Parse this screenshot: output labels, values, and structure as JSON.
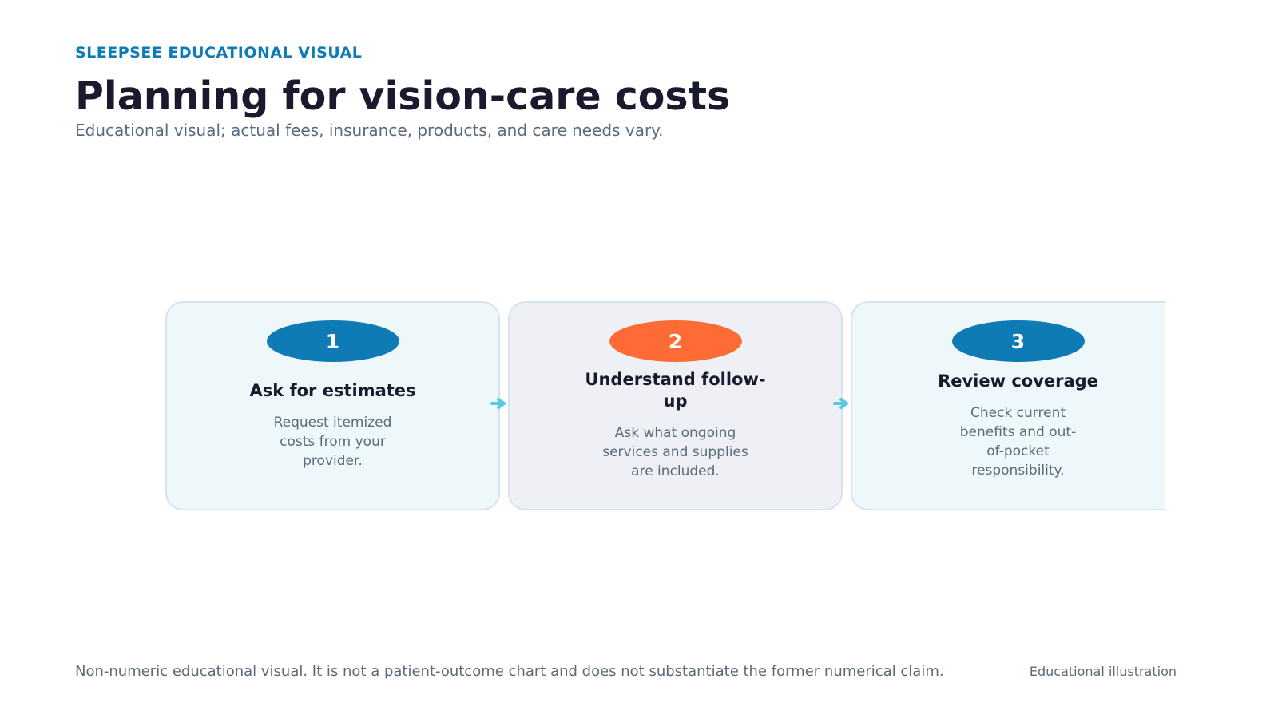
{
  "header": {
    "eyebrow": "SLEEPSEE EDUCATIONAL VISUAL",
    "title": "Planning for vision-care costs",
    "subtitle": "Educational visual; actual fees, insurance, products, and care needs vary."
  },
  "steps": [
    {
      "number": "1",
      "title": "Ask for estimates",
      "body": "Request itemized costs from your provider."
    },
    {
      "number": "2",
      "title": "Understand follow-up",
      "body": "Ask what ongoing services and supplies are included."
    },
    {
      "number": "3",
      "title": "Review coverage",
      "body": "Check current benefits and out-of-pocket responsibility."
    }
  ],
  "footer": {
    "note": "Non-numeric educational visual. It is not a patient-outcome chart and does not substantiate the former numerical claim.",
    "tag": "Educational illustration"
  }
}
